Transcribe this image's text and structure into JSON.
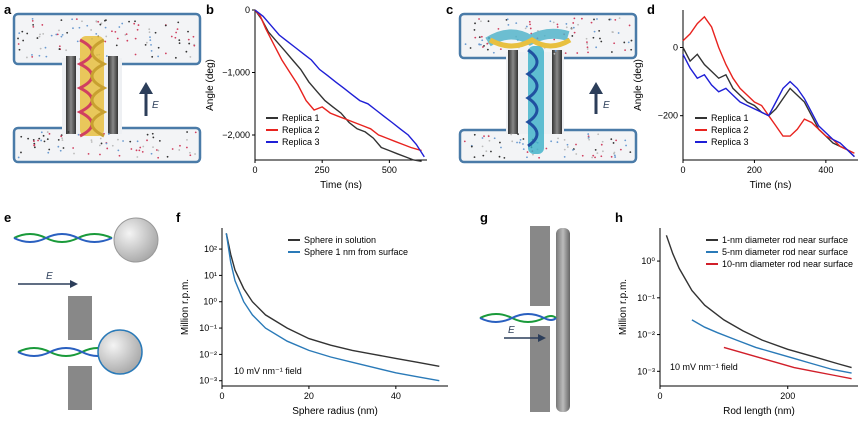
{
  "panels": {
    "a": "a",
    "b": "b",
    "c": "c",
    "d": "d",
    "e": "e",
    "f": "f",
    "g": "g",
    "h": "h"
  },
  "field_label": "E",
  "colors": {
    "black": "#333333",
    "red": "#e8231f",
    "blue": "#1f1fd6",
    "teal": "#2a7ab8",
    "dark_red": "#d11f2a",
    "membrane": "#4a7ba8"
  },
  "chart_data": [
    {
      "id": "b",
      "type": "line",
      "xlabel": "Time (ns)",
      "ylabel": "Angle (deg)",
      "xlim": [
        0,
        640
      ],
      "ylim": [
        -2400,
        0
      ],
      "xticks": [
        0,
        250,
        500
      ],
      "xtick_labels": [
        "0",
        "250",
        "500"
      ],
      "yticks": [
        0,
        -1000,
        -2000
      ],
      "ytick_labels": [
        "0",
        "−1,000",
        "−2,000"
      ],
      "legend": "bottom-left",
      "series": [
        {
          "name": "Replica 1",
          "color": "#333333",
          "x": [
            0,
            25,
            50,
            80,
            110,
            140,
            170,
            200,
            230,
            260,
            290,
            320,
            350,
            380,
            410,
            440,
            470,
            500,
            530,
            560,
            590,
            620
          ],
          "y": [
            0,
            -150,
            -350,
            -500,
            -650,
            -800,
            -950,
            -1150,
            -1300,
            -1450,
            -1550,
            -1650,
            -1800,
            -1900,
            -1950,
            -2050,
            -2200,
            -2250,
            -2300,
            -2350,
            -2400,
            -2420
          ]
        },
        {
          "name": "Replica 2",
          "color": "#e8231f",
          "x": [
            0,
            20,
            40,
            70,
            100,
            130,
            160,
            190,
            220,
            250,
            280,
            310,
            340,
            370,
            400,
            430,
            460,
            490,
            520,
            550,
            580,
            620
          ],
          "y": [
            0,
            -100,
            -300,
            -550,
            -800,
            -1000,
            -1200,
            -1450,
            -1600,
            -1550,
            -1650,
            -1700,
            -1750,
            -1800,
            -1850,
            -1900,
            -2000,
            -2050,
            -2100,
            -2150,
            -2200,
            -2250
          ]
        },
        {
          "name": "Replica 3",
          "color": "#1f1fd6",
          "x": [
            0,
            30,
            60,
            90,
            120,
            150,
            180,
            210,
            240,
            270,
            300,
            330,
            360,
            390,
            420,
            450,
            480,
            510,
            540,
            570,
            600,
            630
          ],
          "y": [
            0,
            -100,
            -250,
            -400,
            -500,
            -600,
            -700,
            -800,
            -950,
            -1050,
            -1150,
            -1250,
            -1350,
            -1450,
            -1500,
            -1600,
            -1700,
            -1800,
            -1900,
            -2000,
            -2150,
            -2350
          ]
        }
      ]
    },
    {
      "id": "d",
      "type": "line",
      "xlabel": "Time (ns)",
      "ylabel": "Angle (deg)",
      "xlim": [
        0,
        490
      ],
      "ylim": [
        -330,
        110
      ],
      "xticks": [
        0,
        200,
        400
      ],
      "xtick_labels": [
        "0",
        "200",
        "400"
      ],
      "yticks": [
        0,
        -200
      ],
      "ytick_labels": [
        "0",
        "−200"
      ],
      "legend": "bottom-left",
      "series": [
        {
          "name": "Replica 1",
          "color": "#333333",
          "x": [
            0,
            20,
            40,
            60,
            80,
            100,
            120,
            140,
            160,
            180,
            200,
            220,
            240,
            260,
            280,
            300,
            320,
            340,
            360,
            380,
            400,
            420,
            440,
            460,
            480
          ],
          "y": [
            0,
            -40,
            -20,
            -50,
            -70,
            -90,
            -80,
            -120,
            -140,
            -160,
            -170,
            -190,
            -200,
            -180,
            -150,
            -120,
            -140,
            -160,
            -200,
            -240,
            -260,
            -280,
            -290,
            -300,
            -320
          ]
        },
        {
          "name": "Replica 2",
          "color": "#e8231f",
          "x": [
            0,
            20,
            40,
            60,
            80,
            100,
            120,
            140,
            160,
            180,
            200,
            220,
            240,
            260,
            280,
            300,
            320,
            340,
            360,
            380,
            400,
            420,
            440,
            460,
            480
          ],
          "y": [
            20,
            40,
            70,
            90,
            60,
            0,
            -50,
            -90,
            -120,
            -140,
            -160,
            -170,
            -200,
            -230,
            -260,
            -260,
            -240,
            -210,
            -220,
            -240,
            -260,
            -270,
            -290,
            -300,
            -310
          ]
        },
        {
          "name": "Replica 3",
          "color": "#1f1fd6",
          "x": [
            0,
            20,
            40,
            60,
            80,
            100,
            120,
            140,
            160,
            180,
            200,
            220,
            240,
            260,
            280,
            300,
            320,
            340,
            360,
            380,
            400,
            420,
            440,
            460,
            480
          ],
          "y": [
            -20,
            -60,
            -90,
            -80,
            -110,
            -130,
            -120,
            -140,
            -160,
            -170,
            -180,
            -190,
            -200,
            -160,
            -120,
            -100,
            -120,
            -150,
            -190,
            -230,
            -250,
            -270,
            -280,
            -300,
            -320
          ]
        }
      ]
    },
    {
      "id": "f",
      "type": "line",
      "scale": "log-y",
      "xlabel": "Sphere radius (nm)",
      "ylabel": "Million r.p.m.",
      "xlim": [
        0,
        52
      ],
      "ylim_exp": [
        -3.2,
        2.8
      ],
      "xticks": [
        0,
        20,
        40
      ],
      "xtick_labels": [
        "0",
        "20",
        "40"
      ],
      "yticks_exp": [
        -3,
        -2,
        -1,
        0,
        1,
        2
      ],
      "ytick_labels": [
        "10⁻³",
        "10⁻²",
        "10⁻¹",
        "10⁰",
        "10¹",
        "10²"
      ],
      "annotation": "10 mV nm⁻¹ field",
      "legend": "top-right",
      "series": [
        {
          "name": "Sphere in solution",
          "color": "#333333",
          "x": [
            1,
            2,
            3,
            5,
            7,
            10,
            15,
            20,
            25,
            30,
            35,
            40,
            45,
            50
          ],
          "y_exp": [
            2.6,
            1.8,
            1.2,
            0.5,
            0.0,
            -0.5,
            -1.0,
            -1.4,
            -1.65,
            -1.85,
            -2.0,
            -2.15,
            -2.3,
            -2.45
          ]
        },
        {
          "name": "Sphere 1 nm from surface",
          "color": "#2a7ab8",
          "x": [
            1,
            2,
            3,
            5,
            7,
            10,
            15,
            20,
            25,
            30,
            35,
            40,
            45,
            50
          ],
          "y_exp": [
            2.6,
            1.5,
            0.8,
            0.0,
            -0.5,
            -1.0,
            -1.5,
            -1.85,
            -2.1,
            -2.3,
            -2.5,
            -2.7,
            -2.85,
            -3.0
          ]
        }
      ]
    },
    {
      "id": "h",
      "type": "line",
      "scale": "log-y",
      "xlabel": "Rod length (nm)",
      "ylabel": "Million r.p.m.",
      "xlim": [
        0,
        310
      ],
      "ylim_exp": [
        -3.4,
        0.9
      ],
      "xticks": [
        0,
        200
      ],
      "xtick_labels": [
        "0",
        "200"
      ],
      "yticks_exp": [
        -3,
        -2,
        -1,
        0
      ],
      "ytick_labels": [
        "10⁻³",
        "10⁻²",
        "10⁻¹",
        "10⁰"
      ],
      "annotation": "10 mV nm⁻¹ field",
      "legend": "top-right",
      "series": [
        {
          "name": "1-nm diameter rod near surface",
          "color": "#333333",
          "x": [
            10,
            20,
            30,
            50,
            70,
            100,
            130,
            160,
            200,
            240,
            280,
            300
          ],
          "y_exp": [
            0.7,
            0.2,
            -0.2,
            -0.8,
            -1.2,
            -1.6,
            -1.9,
            -2.15,
            -2.4,
            -2.6,
            -2.8,
            -2.9
          ]
        },
        {
          "name": "5-nm diameter rod near surface",
          "color": "#2a7ab8",
          "x": [
            50,
            70,
            90,
            120,
            150,
            180,
            210,
            240,
            270,
            300
          ],
          "y_exp": [
            -1.6,
            -1.8,
            -1.95,
            -2.15,
            -2.35,
            -2.5,
            -2.65,
            -2.8,
            -2.95,
            -3.05
          ]
        },
        {
          "name": "10-nm diameter rod near surface",
          "color": "#d11f2a",
          "x": [
            100,
            120,
            150,
            180,
            210,
            240,
            270,
            300
          ],
          "y_exp": [
            -2.35,
            -2.45,
            -2.6,
            -2.75,
            -2.9,
            -3.0,
            -3.1,
            -3.2
          ]
        }
      ]
    }
  ]
}
